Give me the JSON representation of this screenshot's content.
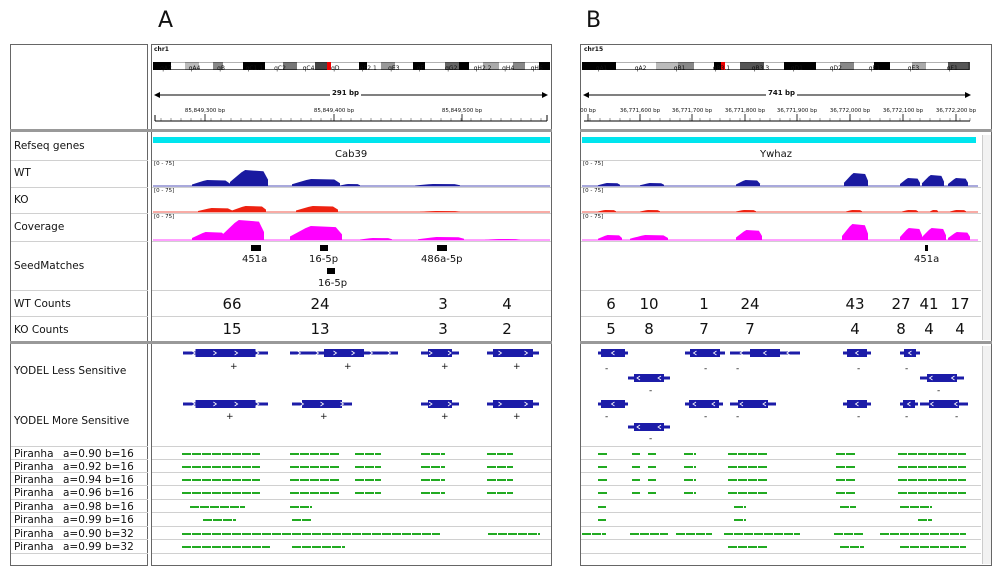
{
  "panels": {
    "a": "A",
    "b": "B"
  },
  "tracks": {
    "refseq": "Refseq genes",
    "wt": "WT",
    "ko": "KO",
    "coverage": "Coverage",
    "seedmatches": "SeedMatches",
    "wt_counts": "WT Counts",
    "ko_counts": "KO Counts",
    "yodel_less": "YODEL Less Sensitive",
    "yodel_more": "YODEL More Sensitive"
  },
  "piranha": [
    {
      "name": "Piranha",
      "params": "a=0.90 b=16"
    },
    {
      "name": "Piranha",
      "params": "a=0.92 b=16"
    },
    {
      "name": "Piranha",
      "params": "a=0.94 b=16"
    },
    {
      "name": "Piranha",
      "params": "a=0.96 b=16"
    },
    {
      "name": "Piranha",
      "params": "a=0.98 b=16"
    },
    {
      "name": "Piranha",
      "params": "a=0.99 b=16"
    },
    {
      "name": "Piranha",
      "params": "a=0.90 b=32"
    },
    {
      "name": "Piranha",
      "params": "a=0.99 b=32"
    }
  ],
  "range_label": "[0 - 75]",
  "left": {
    "chrom": "chr1",
    "bands": [
      "qA2",
      "qA4",
      "qB",
      "qC1.1",
      "qC2",
      "qC4",
      "qD",
      "qE2.1",
      "qE3",
      "qF",
      "qG2",
      "qH2.2",
      "qH4",
      "qH6"
    ],
    "span": "291 bp",
    "ticks": [
      "85,849,300 bp",
      "85,849,400 bp",
      "85,849,500 bp"
    ],
    "gene": "Cab39",
    "seeds": [
      "451a",
      "16-5p",
      "486a-5p",
      "16-5p"
    ],
    "wt_counts": [
      "66",
      "24",
      "3",
      "4"
    ],
    "ko_counts": [
      "15",
      "13",
      "3",
      "2"
    ],
    "strand_less": [
      "+",
      "+",
      "+",
      "+"
    ],
    "strand_more": [
      "+",
      "+",
      "+",
      "+"
    ]
  },
  "right": {
    "chrom": "chr15",
    "bands": [
      "qA1",
      "qA2",
      "qB1",
      "qB3.1",
      "qB3.3",
      "qD1",
      "qD2",
      "qE1",
      "qE3",
      "qF1"
    ],
    "span": "741 bp",
    "ticks": [
      "00 bp",
      "36,771,600 bp",
      "36,771,700 bp",
      "36,771,800 bp",
      "36,771,900 bp",
      "36,772,000 bp",
      "36,772,100 bp",
      "36,772,200 bp"
    ],
    "gene": "Ywhaz",
    "seeds": [
      "451a"
    ],
    "wt_counts": [
      "6",
      "10",
      "1",
      "24",
      "43",
      "27",
      "41",
      "17"
    ],
    "ko_counts": [
      "5",
      "8",
      "7",
      "7",
      "4",
      "8",
      "4",
      "4"
    ],
    "strand_less": [
      "-",
      "-",
      "-",
      "-",
      "-",
      "-",
      "-"
    ],
    "strand_more": [
      "-",
      "-",
      "-",
      "-",
      "-",
      "-",
      "-"
    ]
  },
  "colors": {
    "wt": "#1a1aa0",
    "ko": "#ee2211",
    "coverage": "#ff00ff",
    "yodel": "#1c1ca8",
    "piranha": "#22aa22",
    "refseq": "#00e5ee"
  }
}
